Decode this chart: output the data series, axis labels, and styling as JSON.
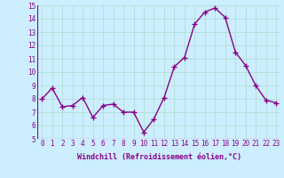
{
  "x": [
    0,
    1,
    2,
    3,
    4,
    5,
    6,
    7,
    8,
    9,
    10,
    11,
    12,
    13,
    14,
    15,
    16,
    17,
    18,
    19,
    20,
    21,
    22,
    23
  ],
  "y": [
    8.0,
    8.8,
    7.4,
    7.5,
    8.1,
    6.6,
    7.5,
    7.6,
    7.0,
    7.0,
    5.5,
    6.5,
    8.1,
    10.4,
    11.1,
    13.6,
    14.5,
    14.8,
    14.1,
    11.5,
    10.5,
    9.0,
    7.9,
    7.7
  ],
  "line_color": "#880088",
  "marker": "+",
  "marker_size": 4,
  "bg_color": "#cceeff",
  "grid_color": "#aaddcc",
  "xlabel": "Windchill (Refroidissement éolien,°C)",
  "tick_color": "#880088",
  "ylim": [
    5,
    15
  ],
  "xlim": [
    -0.5,
    23.5
  ],
  "yticks": [
    5,
    6,
    7,
    8,
    9,
    10,
    11,
    12,
    13,
    14,
    15
  ],
  "xticks": [
    0,
    1,
    2,
    3,
    4,
    5,
    6,
    7,
    8,
    9,
    10,
    11,
    12,
    13,
    14,
    15,
    16,
    17,
    18,
    19,
    20,
    21,
    22,
    23
  ],
  "xtick_labels": [
    "0",
    "1",
    "2",
    "3",
    "4",
    "5",
    "6",
    "7",
    "8",
    "9",
    "10",
    "11",
    "12",
    "13",
    "14",
    "15",
    "16",
    "17",
    "18",
    "19",
    "20",
    "21",
    "22",
    "23"
  ],
  "line_width": 1.0,
  "tick_fontsize": 5.5,
  "xlabel_fontsize": 6.0,
  "marker_color": "#880088"
}
